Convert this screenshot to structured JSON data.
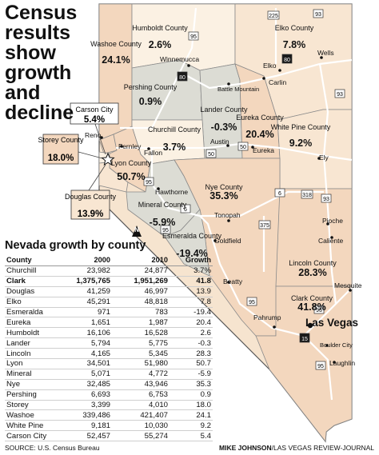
{
  "title_lines": [
    "Census",
    "results",
    "show",
    "growth",
    "and",
    "decline"
  ],
  "counties": [
    {
      "name": "Washoe County",
      "pct": "24.1%"
    },
    {
      "name": "Humboldt County",
      "pct": "2.6%"
    },
    {
      "name": "Elko County",
      "pct": "7.8%"
    },
    {
      "name": "Pershing County",
      "pct": "0.9%"
    },
    {
      "name": "Lander County",
      "pct": "-0.3%"
    },
    {
      "name": "Eureka County",
      "pct": "20.4%"
    },
    {
      "name": "White Pine County",
      "pct": "9.2%"
    },
    {
      "name": "Churchill County",
      "pct": "3.7%"
    },
    {
      "name": "Carson City",
      "pct": "5.4%"
    },
    {
      "name": "Storey County",
      "pct": "18.0%"
    },
    {
      "name": "Lyon County",
      "pct": "50.7%"
    },
    {
      "name": "Douglas County",
      "pct": "13.9%"
    },
    {
      "name": "Mineral County",
      "pct": "-5.9%"
    },
    {
      "name": "Nye County",
      "pct": "35.3%"
    },
    {
      "name": "Esmeralda County",
      "pct": "-19.4%"
    },
    {
      "name": "Lincoln County",
      "pct": "28.3%"
    },
    {
      "name": "Clark County",
      "pct": "41.8%"
    }
  ],
  "towns": [
    "Winnemucca",
    "Elko",
    "Wells",
    "Carlin",
    "Battle Mountain",
    "Reno",
    "Fernley",
    "Fallon",
    "Austin",
    "Eureka",
    "Ely",
    "Hawthorne",
    "Tonopah",
    "Goldfield",
    "Pioche",
    "Caliente",
    "Beatty",
    "Pahrump",
    "Mesquite",
    "Las Vegas",
    "Boulder City",
    "Laughlin"
  ],
  "highways": [
    "95",
    "225",
    "93",
    "80",
    "80",
    "93",
    "50",
    "50",
    "6",
    "318",
    "93",
    "6",
    "375",
    "95",
    "95",
    "93",
    "15",
    "95",
    "95"
  ],
  "table": {
    "title": "Nevada growth by county",
    "headers": [
      "County",
      "2000",
      "2010",
      "Growth"
    ],
    "rows": [
      [
        "Churchill",
        "23,982",
        "24,877",
        "3.7%"
      ],
      [
        "Clark",
        "1,375,765",
        "1,951,269",
        "41.8"
      ],
      [
        "Douglas",
        "41,259",
        "46,997",
        "13.9"
      ],
      [
        "Elko",
        "45,291",
        "48,818",
        "7.8"
      ],
      [
        "Esmeralda",
        "971",
        "783",
        "-19.4"
      ],
      [
        "Eureka",
        "1,651",
        "1,987",
        "20.4"
      ],
      [
        "Humboldt",
        "16,106",
        "16,528",
        "2.6"
      ],
      [
        "Lander",
        "5,794",
        "5,775",
        "-0.3"
      ],
      [
        "Lincoln",
        "4,165",
        "5,345",
        "28.3"
      ],
      [
        "Lyon",
        "34,501",
        "51,980",
        "50.7"
      ],
      [
        "Mineral",
        "5,071",
        "4,772",
        "-5.9"
      ],
      [
        "Nye",
        "32,485",
        "43,946",
        "35.3"
      ],
      [
        "Pershing",
        "6,693",
        "6,753",
        "0.9"
      ],
      [
        "Storey",
        "3,399",
        "4,010",
        "18.0"
      ],
      [
        "Washoe",
        "339,486",
        "421,407",
        "24.1"
      ],
      [
        "White Pine",
        "9,181",
        "10,030",
        "9.2"
      ],
      [
        "Carson City",
        "52,457",
        "55,274",
        "5.4"
      ]
    ]
  },
  "compass": "N",
  "source": "SOURCE: U.S. Census Bureau",
  "credit_name": "MIKE JOHNSON",
  "credit_org": "/LAS VEGAS REVIEW-JOURNAL",
  "colors": {
    "growth_high": "#f3d7be",
    "growth_mid": "#f8e6d2",
    "growth_low": "#fbf1e3",
    "decline": "#dcdcd4",
    "border": "#8a8a8a",
    "road": "#ffffff"
  }
}
